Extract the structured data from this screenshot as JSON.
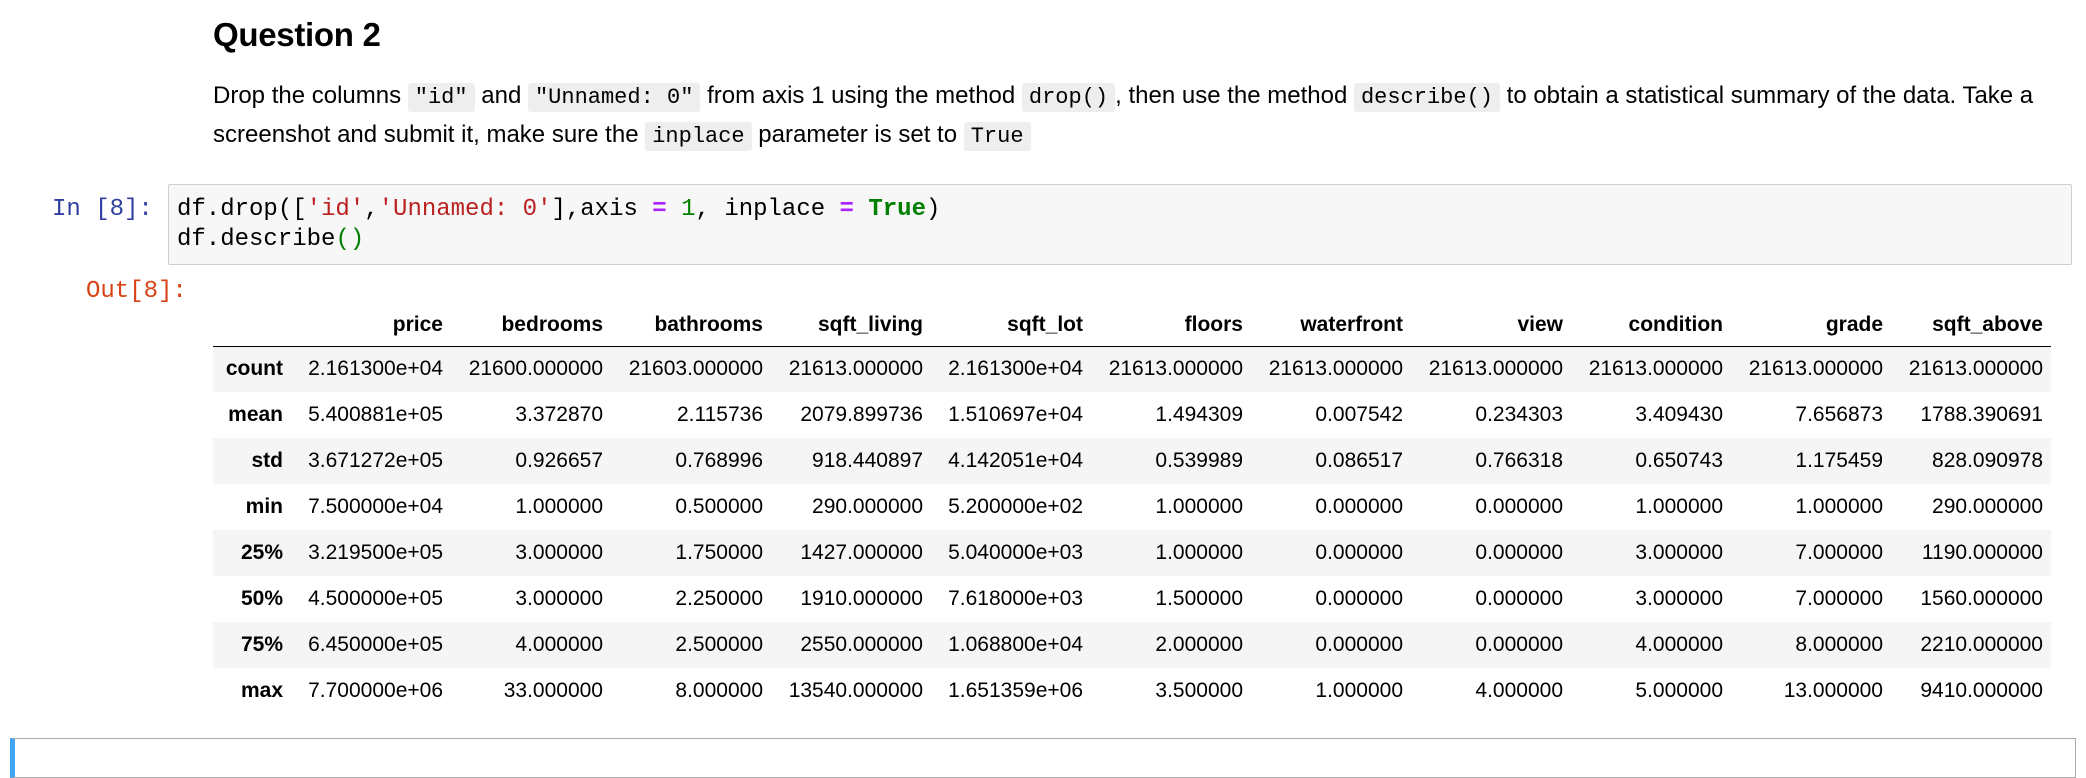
{
  "markdown": {
    "heading": "Question 2",
    "para": {
      "t1": "Drop the columns ",
      "c1": "\"id\"",
      "t2": " and ",
      "c2": "\"Unnamed: 0\"",
      "t3": " from axis 1 using the method ",
      "c3": "drop()",
      "t4": ", then use the method ",
      "c4": "describe()",
      "t5": " to obtain a statistical summary of the data. Take a screenshot and submit it, make sure the ",
      "c5": "inplace",
      "t6": " parameter is set to ",
      "c6": "True"
    }
  },
  "cell": {
    "in_prompt": "In [8]:",
    "out_prompt": "Out[8]:",
    "code": {
      "l1_a": "df.drop([",
      "l1_s1": "'id'",
      "l1_comma": ",",
      "l1_s2": "'Unnamed: 0'",
      "l1_b": "],axis ",
      "l1_eq1": "=",
      "l1_sp": " ",
      "l1_one": "1",
      "l1_c": ", inplace ",
      "l1_eq2": "=",
      "l1_sp2": " ",
      "l1_true": "True",
      "l1_close": ")",
      "l2_a": "df.describe",
      "l2_paren": "()"
    }
  },
  "table": {
    "columns": [
      "price",
      "bedrooms",
      "bathrooms",
      "sqft_living",
      "sqft_lot",
      "floors",
      "waterfront",
      "view",
      "condition",
      "grade",
      "sqft_above"
    ],
    "rows": [
      {
        "label": "count",
        "values": [
          "2.161300e+04",
          "21600.000000",
          "21603.000000",
          "21613.000000",
          "2.161300e+04",
          "21613.000000",
          "21613.000000",
          "21613.000000",
          "21613.000000",
          "21613.000000",
          "21613.000000"
        ]
      },
      {
        "label": "mean",
        "values": [
          "5.400881e+05",
          "3.372870",
          "2.115736",
          "2079.899736",
          "1.510697e+04",
          "1.494309",
          "0.007542",
          "0.234303",
          "3.409430",
          "7.656873",
          "1788.390691"
        ]
      },
      {
        "label": "std",
        "values": [
          "3.671272e+05",
          "0.926657",
          "0.768996",
          "918.440897",
          "4.142051e+04",
          "0.539989",
          "0.086517",
          "0.766318",
          "0.650743",
          "1.175459",
          "828.090978"
        ]
      },
      {
        "label": "min",
        "values": [
          "7.500000e+04",
          "1.000000",
          "0.500000",
          "290.000000",
          "5.200000e+02",
          "1.000000",
          "0.000000",
          "0.000000",
          "1.000000",
          "1.000000",
          "290.000000"
        ]
      },
      {
        "label": "25%",
        "values": [
          "3.219500e+05",
          "3.000000",
          "1.750000",
          "1427.000000",
          "5.040000e+03",
          "1.000000",
          "0.000000",
          "0.000000",
          "3.000000",
          "7.000000",
          "1190.000000"
        ]
      },
      {
        "label": "50%",
        "values": [
          "4.500000e+05",
          "3.000000",
          "2.250000",
          "1910.000000",
          "7.618000e+03",
          "1.500000",
          "0.000000",
          "0.000000",
          "3.000000",
          "7.000000",
          "1560.000000"
        ]
      },
      {
        "label": "75%",
        "values": [
          "6.450000e+05",
          "4.000000",
          "2.500000",
          "2550.000000",
          "1.068800e+04",
          "2.000000",
          "0.000000",
          "0.000000",
          "4.000000",
          "8.000000",
          "2210.000000"
        ]
      },
      {
        "label": "max",
        "values": [
          "7.700000e+06",
          "33.000000",
          "8.000000",
          "13540.000000",
          "1.651359e+06",
          "3.500000",
          "1.000000",
          "4.000000",
          "5.000000",
          "13.000000",
          "9410.000000"
        ]
      }
    ]
  }
}
